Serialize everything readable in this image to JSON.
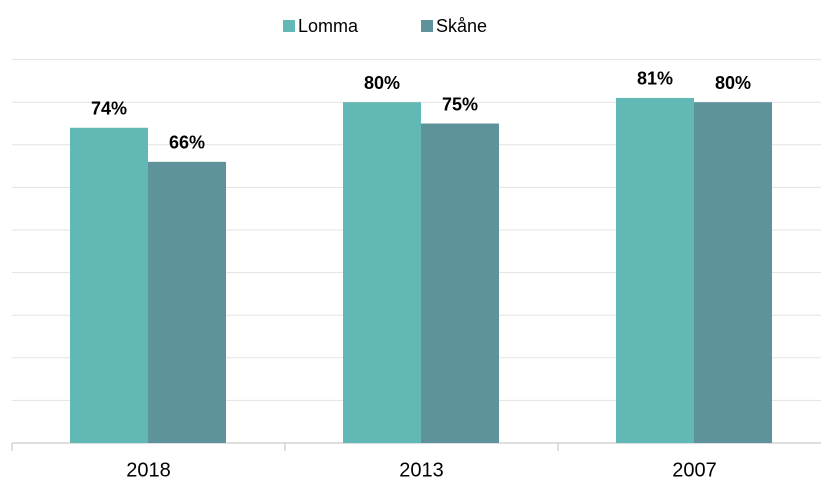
{
  "chart_data": {
    "type": "bar",
    "categories": [
      "2018",
      "2013",
      "2007"
    ],
    "series": [
      {
        "name": "Lomma",
        "color": "#62b8b5",
        "values": [
          74,
          80,
          81
        ],
        "value_labels": [
          "74%",
          "80%",
          "81%"
        ]
      },
      {
        "name": "Skåne",
        "color": "#5f939c",
        "values": [
          66,
          75,
          80
        ],
        "value_labels": [
          "66%",
          "75%",
          "80%"
        ]
      }
    ],
    "ylim": [
      0,
      90
    ],
    "yticks": [
      0,
      10,
      20,
      30,
      40,
      50,
      60,
      70,
      80,
      90
    ],
    "grid": true,
    "legend": "top"
  }
}
